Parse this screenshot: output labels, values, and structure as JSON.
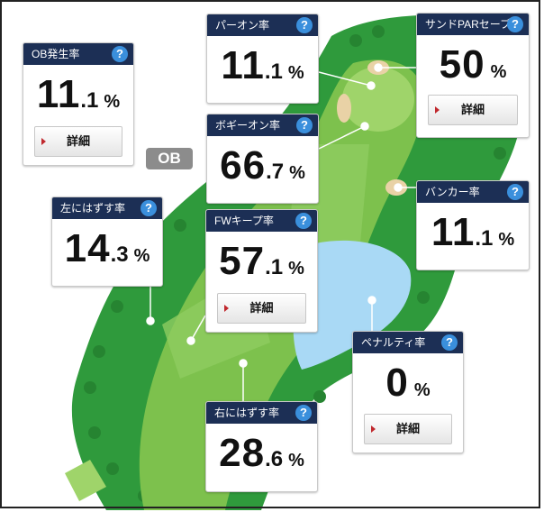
{
  "map": {
    "ob_label": "OB"
  },
  "cards": {
    "ob_rate": {
      "title": "OB発生率",
      "help": "?",
      "int": "11",
      "dec": ".1",
      "unit": "%",
      "detail": "詳細"
    },
    "par_on": {
      "title": "パーオン率",
      "help": "?",
      "int": "11",
      "dec": ".1",
      "unit": "%"
    },
    "sand_save": {
      "title": "サンドPARセーブ率",
      "help": "?",
      "int": "50",
      "dec": "",
      "unit": "%",
      "detail": "詳細"
    },
    "bogey_on": {
      "title": "ボギーオン率",
      "help": "?",
      "int": "66",
      "dec": ".7",
      "unit": "%"
    },
    "bunker": {
      "title": "バンカー率",
      "help": "?",
      "int": "11",
      "dec": ".1",
      "unit": "%"
    },
    "miss_left": {
      "title": "左にはずす率",
      "help": "?",
      "int": "14",
      "dec": ".3",
      "unit": "%"
    },
    "fw_keep": {
      "title": "FWキープ率",
      "help": "?",
      "int": "57",
      "dec": ".1",
      "unit": "%",
      "detail": "詳細"
    },
    "penalty": {
      "title": "ペナルティ率",
      "help": "?",
      "int": "0",
      "dec": "",
      "unit": "%",
      "detail": "詳細"
    },
    "miss_right": {
      "title": "右にはずす率",
      "help": "?",
      "int": "28",
      "dec": ".6",
      "unit": "%"
    }
  },
  "colors": {
    "header": "#1c2f55",
    "help": "#3a8fdc",
    "rough": "#2f9a3c",
    "fairway": "#7dc14d",
    "green": "#9fd46a",
    "bunker": "#e9d2a6",
    "water": "#a9d9f5",
    "ob_badge": "#8c8c8c",
    "detail_marker": "#c0282d"
  }
}
